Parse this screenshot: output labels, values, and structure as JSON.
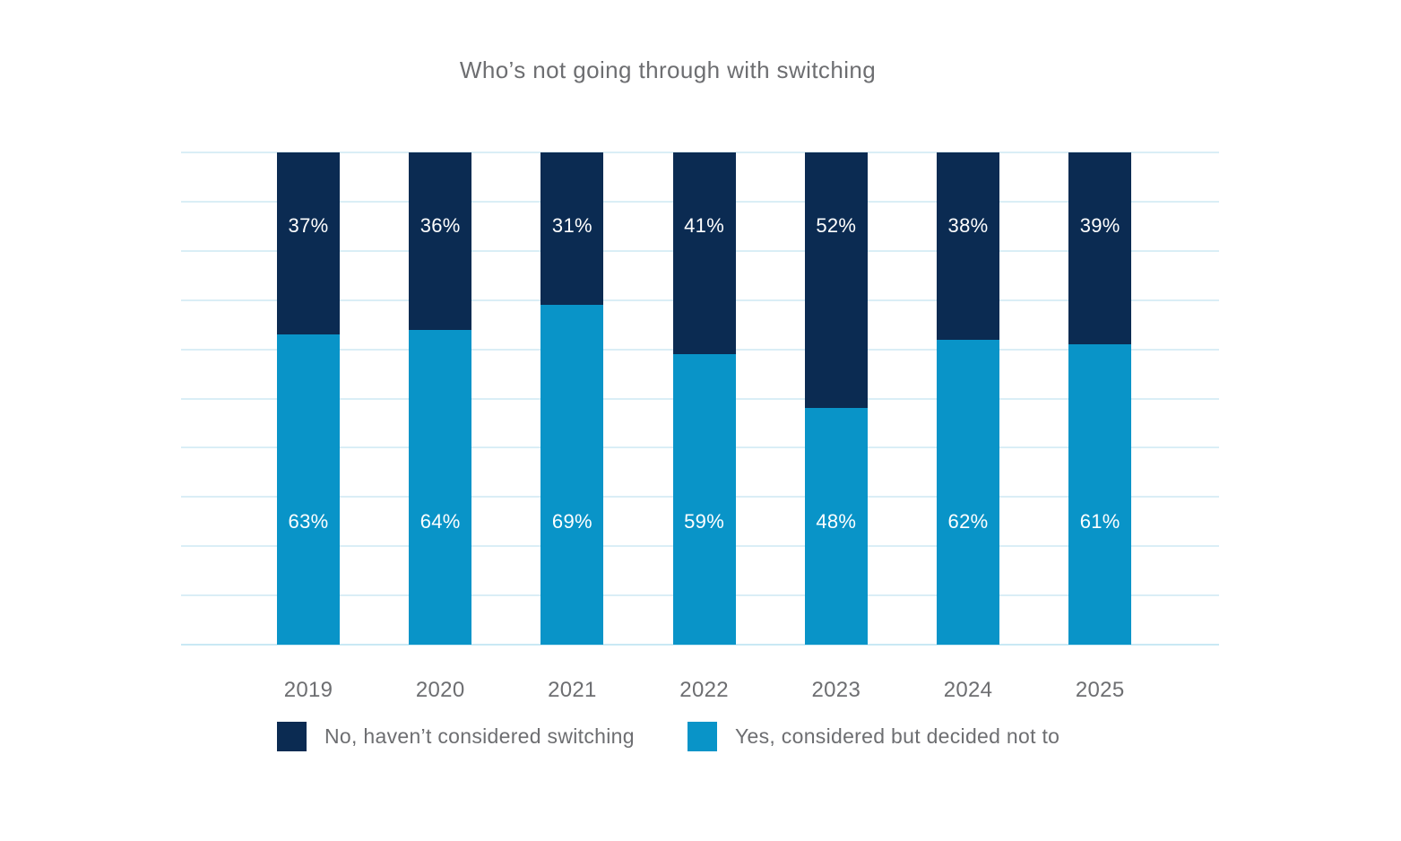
{
  "page": {
    "background": "#ffffff",
    "text_color": "#6d6e71"
  },
  "chart_data": {
    "type": "bar",
    "stacked": true,
    "title": "Who’s not going through with switching",
    "categories": [
      "2019",
      "2020",
      "2021",
      "2022",
      "2023",
      "2024",
      "2025"
    ],
    "series": [
      {
        "name": "No, haven’t considered switching",
        "color": "#0b2b52",
        "values": [
          37,
          36,
          31,
          41,
          52,
          38,
          39
        ],
        "labels": [
          "37%",
          "36%",
          "31%",
          "41%",
          "52%",
          "38%",
          "39%"
        ]
      },
      {
        "name": "Yes, considered but decided not to",
        "color": "#0994c8",
        "values": [
          63,
          64,
          69,
          59,
          48,
          62,
          61
        ],
        "labels": [
          "63%",
          "64%",
          "69%",
          "59%",
          "48%",
          "62%",
          "61%"
        ]
      }
    ],
    "ylim": [
      0,
      100
    ],
    "y_gridline_step_percent": 10,
    "grid": true,
    "gridline_color": "#daeef6",
    "axis_line_color": "#c9e9f4",
    "value_label_color": "#ffffff",
    "legend_position": "bottom"
  }
}
